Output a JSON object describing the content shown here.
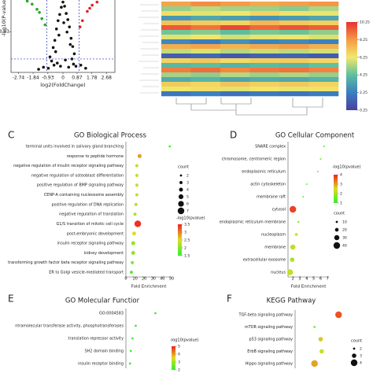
{
  "chart_data": [
    {
      "type": "scatter",
      "xlabel": "log2(FoldChange)",
      "ylabel": "-log10(P-value)",
      "xlim": [
        -3.2,
        3.2
      ],
      "ylim": [
        0,
        7
      ],
      "xticks": [
        -2.74,
        -1.84,
        -0.93,
        0,
        0.87,
        1.78,
        2.68
      ],
      "yticks": [
        3.93
      ],
      "thresholds_x": [
        -1,
        1
      ],
      "threshold_y": 1.3,
      "series": [
        {
          "color": "#111111",
          "x": [
            -0.8,
            -0.6,
            -0.5,
            -0.4,
            -0.3,
            -0.2,
            -0.1,
            0,
            0.1,
            0.2,
            0.3,
            0.4,
            0.5,
            0.6,
            0.7,
            -0.7,
            -0.45,
            -0.25,
            0.05,
            0.25,
            0.45,
            0.65,
            -0.15,
            0.15,
            -0.35,
            0.35,
            -0.55,
            0.55,
            -0.9,
            0.8,
            -1.2,
            1.1,
            -1.5,
            1.4
          ],
          "y": [
            1.5,
            2.4,
            3.1,
            4.2,
            5,
            5.6,
            6.3,
            6.8,
            6.4,
            5.7,
            5.1,
            4.4,
            3.3,
            2.5,
            1.8,
            1.1,
            2,
            3.6,
            4.8,
            3.9,
            2.7,
            0.8,
            0.6,
            1.2,
            0.9,
            0.5,
            0.7,
            1.3,
            0.4,
            0.6,
            0.5,
            0.7,
            0.3,
            0.4
          ]
        },
        {
          "color": "#22aa22",
          "x": [
            -1.3,
            -1.6,
            -1.9,
            -2.2,
            -1.1,
            -1.45
          ],
          "y": [
            5.2,
            6.1,
            6.6,
            6.9,
            4.6,
            5.8
          ]
        },
        {
          "color": "#dd2222",
          "x": [
            1.2,
            1.5,
            1.8,
            2.1,
            1.05,
            1.65
          ],
          "y": [
            5.0,
            5.9,
            6.5,
            6.8,
            4.4,
            6.2
          ]
        }
      ]
    },
    {
      "type": "heatmap",
      "zlim": [
        0.25,
        10.25
      ],
      "zticks": [
        10.25,
        8.25,
        6.25,
        4.25,
        2.25,
        0.25
      ],
      "colormap": [
        "#4b3fa0",
        "#3a7fc0",
        "#5fbf9f",
        "#f2e86b",
        "#f59a45",
        "#e8312f"
      ],
      "values": [
        [
          8,
          8.5,
          8.2,
          7.9,
          8.1,
          8.3
        ],
        [
          5,
          5.5,
          5.2,
          5.1,
          4.8,
          5.3
        ],
        [
          6.5,
          6,
          6.2,
          6.8,
          6.4,
          6.1
        ],
        [
          3,
          3.5,
          3.2,
          2.8,
          3.1,
          3.4
        ],
        [
          7.2,
          7,
          6.8,
          7.5,
          7.1,
          6.9
        ],
        [
          9.5,
          9,
          9.8,
          9.2,
          9.6,
          9.4
        ],
        [
          4.5,
          4.8,
          4.2,
          4.6,
          4.4,
          4.9
        ],
        [
          6,
          6.3,
          5.8,
          6.1,
          6.2,
          5.9
        ],
        [
          2.5,
          2.2,
          2.8,
          2.4,
          2.6,
          2.3
        ],
        [
          7.8,
          8,
          7.6,
          7.9,
          8.2,
          7.7
        ],
        [
          5.6,
          5.9,
          5.4,
          5.7,
          5.5,
          5.8
        ],
        [
          1.2,
          1.5,
          1,
          1.3,
          1.4,
          1.1
        ],
        [
          6.8,
          7.1,
          6.6,
          6.9,
          7,
          6.7
        ],
        [
          4,
          4.2,
          3.8,
          4.1,
          3.9,
          4.3
        ],
        [
          8.8,
          9.1,
          8.6,
          8.9,
          9,
          8.7
        ],
        [
          5.2,
          4.9,
          5.4,
          5.1,
          5.3,
          5
        ],
        [
          3.6,
          3.9,
          3.4,
          3.7,
          3.5,
          3.8
        ],
        [
          7,
          6.7,
          7.2,
          6.9,
          7.1,
          6.8
        ],
        [
          6.2,
          6.5,
          6,
          6.3,
          6.1,
          6.4
        ],
        [
          2,
          2.3,
          1.8,
          2.1,
          1.9,
          2.2
        ]
      ]
    },
    {
      "type": "dot",
      "panel": "C",
      "title": "GO Biological Process",
      "xlabel": "Fold Enrichment",
      "categories": [
        "terminal units involved in salivary gland branching",
        "response to peptide hormone",
        "negative regulation of insulin receptor signaling pathway",
        "negative regulation of osteoblast differentiation",
        "positive regulation of BMP signaling pathway",
        "CENP-A containing nucleosome assembly",
        "positive regulation of DNA replication",
        "negative regulation of translation",
        "G1/S transition of mitotic cell cycle",
        "post-embryonic development",
        "insulin receptor signaling pathway",
        "kidney development",
        "transforming growth factor beta receptor signaling pathway",
        "ER to Golgi vesicle-mediated transport"
      ],
      "values": [
        48,
        15,
        12,
        12,
        12,
        12,
        11,
        10,
        13,
        9,
        8,
        8,
        7,
        6
      ],
      "counts": [
        2,
        4,
        3,
        3,
        3,
        3,
        3,
        3,
        7,
        4,
        4,
        4,
        3,
        3
      ],
      "pvalues": [
        1.5,
        2.9,
        2.3,
        2.3,
        2.3,
        2.3,
        2.2,
        2.1,
        3.6,
        2.5,
        2,
        2,
        1.8,
        1.6
      ],
      "xlim": [
        0,
        50
      ],
      "xticks": [
        0,
        10,
        20,
        30,
        40,
        50
      ],
      "count_title": "count",
      "count_ticks": [
        2,
        3,
        4,
        5,
        6,
        7
      ],
      "color_title": "-log10(pvalue)",
      "clim": [
        1.3,
        3.7
      ],
      "cticks": [
        3.5,
        3.0,
        2.5,
        2.0,
        1.5
      ],
      "colormap": [
        "#33ee33",
        "#dddd22",
        "#ee2222"
      ]
    },
    {
      "type": "dot",
      "panel": "D",
      "title": "GO Cellular Component",
      "xlabel": "Fold Enrichment",
      "categories": [
        "SNARE complex",
        "chromosome, centromeric region",
        "endoplasmic reticulum",
        "actin cytoskeleton",
        "membrane raft",
        "cytosol",
        "endoplasmic reticulum membrane",
        "nucleoplasm",
        "membrane",
        "extracellular exosome",
        "nucleus"
      ],
      "values": [
        6.5,
        6,
        5.6,
        4,
        3.5,
        2,
        2.8,
        2.5,
        2,
        1.9,
        1.6
      ],
      "counts": [
        2,
        3,
        5,
        6,
        5,
        40,
        8,
        15,
        30,
        25,
        35
      ],
      "pvalues": [
        1.2,
        1.4,
        1.6,
        1.5,
        1.4,
        4,
        1.8,
        2.5,
        2.2,
        2,
        2.3
      ],
      "xlim": [
        1.3,
        7.2
      ],
      "xticks": [
        2,
        3,
        4,
        5,
        6,
        7
      ],
      "count_title": "count",
      "count_ticks": [
        10,
        20,
        30,
        40
      ],
      "color_title": "-log10(pvalue)",
      "clim": [
        0.8,
        4.3
      ],
      "cticks": [
        4,
        3,
        2,
        1
      ],
      "colormap": [
        "#33ee33",
        "#dddd22",
        "#ee2222"
      ]
    },
    {
      "type": "dot",
      "panel": "E",
      "title": "GO Molecular Functior",
      "categories": [
        "GO:0004583",
        "ntramolecular transferase activity, phosphotransferases",
        "translation repressor activity",
        "SH2 domain binding",
        "insulin receptor binding"
      ],
      "values": [
        36,
        12,
        8,
        6,
        5
      ],
      "pvalues": [
        1.8,
        1.6,
        1.7,
        1.6,
        1.5
      ],
      "xlim": [
        0,
        50
      ],
      "color_title": "-log10(pvalue)",
      "clim": [
        1.5,
        5.2
      ],
      "cticks": [
        5,
        4,
        3,
        2
      ],
      "colormap": [
        "#33ee33",
        "#dddd22",
        "#ee2222"
      ]
    },
    {
      "type": "dot",
      "panel": "F",
      "title": "KEGG Pathway",
      "categories": [
        "TGF-beta signaling pathway",
        "mTOR signaling pathway",
        "p53 signaling pathway",
        "ErbB signaling pathway",
        "Hippo signaling pathway"
      ],
      "values": [
        8.5,
        3.8,
        5,
        5.2,
        3.8
      ],
      "counts": [
        4,
        2,
        3,
        3,
        4
      ],
      "pvalues": [
        3.5,
        2,
        2.8,
        2.5,
        3
      ],
      "xlim": [
        0,
        10
      ],
      "count_title": "count",
      "count_ticks": [
        2,
        3,
        4
      ],
      "clim": [
        1.5,
        3.8
      ],
      "colormap": [
        "#33ee33",
        "#dddd22",
        "#ee2222"
      ]
    }
  ]
}
